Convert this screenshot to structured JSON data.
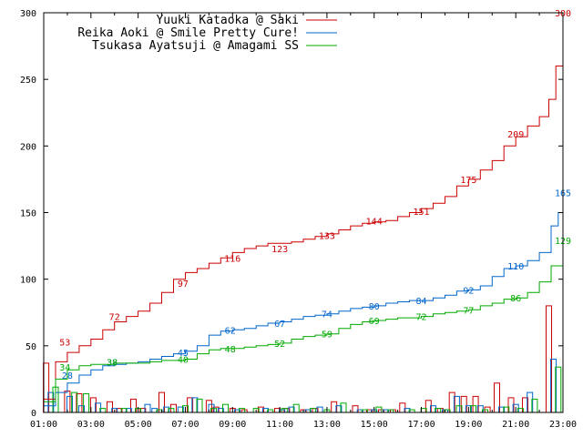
{
  "chart_data": {
    "type": "line",
    "title": "",
    "xlabel": "",
    "ylabel": "",
    "xlim": [
      "01:00",
      "23:00"
    ],
    "ylim": [
      0,
      300
    ],
    "grid": false,
    "legend_position": "top-right",
    "x_tick_labels": [
      "01:00",
      "03:00",
      "05:00",
      "07:00",
      "09:00",
      "11:00",
      "13:00",
      "15:00",
      "17:00",
      "19:00",
      "21:00",
      "23:00"
    ],
    "y_tick_labels": [
      "0",
      "50",
      "100",
      "150",
      "200",
      "250",
      "300"
    ],
    "series": [
      {
        "name": "Yuuki Kataoka @ Saki",
        "color": "#cc0000",
        "points": [
          [
            1.0,
            10
          ],
          [
            1.5,
            38
          ],
          [
            2.0,
            45
          ],
          [
            2.5,
            50
          ],
          [
            3.0,
            55
          ],
          [
            3.5,
            62
          ],
          [
            4.0,
            68
          ],
          [
            4.5,
            72
          ],
          [
            5.0,
            76
          ],
          [
            5.5,
            82
          ],
          [
            6.0,
            90
          ],
          [
            6.5,
            100
          ],
          [
            7.0,
            105
          ],
          [
            7.5,
            108
          ],
          [
            8.0,
            112
          ],
          [
            8.5,
            116
          ],
          [
            9.0,
            120
          ],
          [
            9.5,
            123
          ],
          [
            10.0,
            125
          ],
          [
            10.5,
            127
          ],
          [
            11.0,
            127
          ],
          [
            11.5,
            128
          ],
          [
            12.0,
            130
          ],
          [
            12.5,
            132
          ],
          [
            13.0,
            134
          ],
          [
            13.5,
            137
          ],
          [
            14.0,
            140
          ],
          [
            14.5,
            142
          ],
          [
            15.0,
            143
          ],
          [
            15.5,
            144
          ],
          [
            16.0,
            147
          ],
          [
            16.5,
            150
          ],
          [
            17.0,
            153
          ],
          [
            17.5,
            157
          ],
          [
            18.0,
            162
          ],
          [
            18.5,
            170
          ],
          [
            19.0,
            175
          ],
          [
            19.5,
            182
          ],
          [
            20.0,
            189
          ],
          [
            20.5,
            200
          ],
          [
            21.0,
            207
          ],
          [
            21.5,
            215
          ],
          [
            22.0,
            222
          ],
          [
            22.4,
            235
          ],
          [
            22.7,
            260
          ],
          [
            23.0,
            300
          ]
        ],
        "labels": [
          [
            1.9,
            53
          ],
          [
            4.0,
            72
          ],
          [
            6.9,
            97
          ],
          [
            9.0,
            116
          ],
          [
            11.0,
            123
          ],
          [
            13.0,
            133
          ],
          [
            15.0,
            144
          ],
          [
            17.0,
            151
          ],
          [
            19.0,
            175
          ],
          [
            21.0,
            209
          ],
          [
            23.0,
            300
          ]
        ]
      },
      {
        "name": "Reika Aoki @ Smile Pretty Cure!",
        "color": "#0066cc",
        "points": [
          [
            1.0,
            5
          ],
          [
            1.5,
            15
          ],
          [
            2.0,
            22
          ],
          [
            2.5,
            28
          ],
          [
            3.0,
            32
          ],
          [
            3.5,
            35
          ],
          [
            4.0,
            36
          ],
          [
            4.5,
            37
          ],
          [
            5.0,
            38
          ],
          [
            5.5,
            40
          ],
          [
            6.0,
            42
          ],
          [
            6.5,
            44
          ],
          [
            7.0,
            46
          ],
          [
            7.5,
            50
          ],
          [
            8.0,
            58
          ],
          [
            8.5,
            61
          ],
          [
            9.0,
            62
          ],
          [
            9.5,
            63
          ],
          [
            10.0,
            65
          ],
          [
            10.5,
            67
          ],
          [
            11.0,
            68
          ],
          [
            11.5,
            70
          ],
          [
            12.0,
            72
          ],
          [
            12.5,
            73
          ],
          [
            13.0,
            74
          ],
          [
            13.5,
            76
          ],
          [
            14.0,
            78
          ],
          [
            14.5,
            79
          ],
          [
            15.0,
            80
          ],
          [
            15.5,
            82
          ],
          [
            16.0,
            83
          ],
          [
            16.5,
            84
          ],
          [
            17.0,
            84
          ],
          [
            17.5,
            86
          ],
          [
            18.0,
            88
          ],
          [
            18.5,
            91
          ],
          [
            19.0,
            92
          ],
          [
            19.5,
            95
          ],
          [
            20.0,
            102
          ],
          [
            20.5,
            108
          ],
          [
            21.0,
            110
          ],
          [
            21.5,
            114
          ],
          [
            22.0,
            120
          ],
          [
            22.5,
            140
          ],
          [
            22.8,
            150
          ],
          [
            23.0,
            165
          ]
        ],
        "labels": [
          [
            2.0,
            28
          ],
          [
            3.9,
            38
          ],
          [
            6.9,
            45
          ],
          [
            8.9,
            62
          ],
          [
            11.0,
            67
          ],
          [
            13.0,
            74
          ],
          [
            15.0,
            80
          ],
          [
            17.0,
            84
          ],
          [
            19.0,
            92
          ],
          [
            21.0,
            110
          ],
          [
            23.0,
            165
          ]
        ]
      },
      {
        "name": "Tsukasa Ayatsuji @ Amagami SS",
        "color": "#00aa00",
        "points": [
          [
            1.0,
            8
          ],
          [
            1.5,
            25
          ],
          [
            2.0,
            32
          ],
          [
            2.5,
            35
          ],
          [
            3.0,
            36
          ],
          [
            3.5,
            36
          ],
          [
            4.0,
            37
          ],
          [
            4.5,
            37
          ],
          [
            5.0,
            37
          ],
          [
            5.5,
            38
          ],
          [
            6.0,
            39
          ],
          [
            6.5,
            39
          ],
          [
            7.0,
            40
          ],
          [
            7.5,
            44
          ],
          [
            8.0,
            47
          ],
          [
            8.5,
            48
          ],
          [
            9.0,
            48
          ],
          [
            9.5,
            49
          ],
          [
            10.0,
            50
          ],
          [
            10.5,
            51
          ],
          [
            11.0,
            52
          ],
          [
            11.5,
            55
          ],
          [
            12.0,
            57
          ],
          [
            12.5,
            58
          ],
          [
            13.0,
            59
          ],
          [
            13.5,
            63
          ],
          [
            14.0,
            66
          ],
          [
            14.5,
            68
          ],
          [
            15.0,
            69
          ],
          [
            15.5,
            70
          ],
          [
            16.0,
            71
          ],
          [
            16.5,
            71
          ],
          [
            17.0,
            72
          ],
          [
            17.5,
            74
          ],
          [
            18.0,
            75
          ],
          [
            18.5,
            76
          ],
          [
            19.0,
            77
          ],
          [
            19.5,
            80
          ],
          [
            20.0,
            82
          ],
          [
            20.5,
            85
          ],
          [
            21.0,
            86
          ],
          [
            21.5,
            90
          ],
          [
            22.0,
            98
          ],
          [
            22.5,
            110
          ],
          [
            23.0,
            129
          ]
        ],
        "labels": [
          [
            1.9,
            34
          ],
          [
            3.9,
            38
          ],
          [
            6.9,
            40
          ],
          [
            8.9,
            48
          ],
          [
            11.0,
            52
          ],
          [
            13.0,
            59
          ],
          [
            15.0,
            69
          ],
          [
            17.0,
            72
          ],
          [
            19.0,
            77
          ],
          [
            21.0,
            86
          ],
          [
            23.0,
            129
          ]
        ]
      }
    ],
    "bar_series": [
      {
        "name": "Yuuki Kataoka @ Saki",
        "color": "#cc0000",
        "bars": [
          [
            1.1,
            37
          ],
          [
            2.0,
            16
          ],
          [
            2.5,
            14
          ],
          [
            3.1,
            11
          ],
          [
            3.8,
            8
          ],
          [
            4.2,
            3
          ],
          [
            4.8,
            10
          ],
          [
            5.2,
            3
          ],
          [
            6.0,
            15
          ],
          [
            6.5,
            6
          ],
          [
            7.2,
            11
          ],
          [
            8.0,
            9
          ],
          [
            8.3,
            4
          ],
          [
            9.0,
            3
          ],
          [
            9.5,
            2
          ],
          [
            10.2,
            4
          ],
          [
            10.9,
            3
          ],
          [
            11.3,
            3
          ],
          [
            12.0,
            2
          ],
          [
            12.5,
            3
          ],
          [
            13.3,
            8
          ],
          [
            14.2,
            5
          ],
          [
            14.8,
            2
          ],
          [
            15.3,
            2
          ],
          [
            15.8,
            2
          ],
          [
            16.2,
            7
          ],
          [
            17.3,
            9
          ],
          [
            17.8,
            3
          ],
          [
            18.3,
            15
          ],
          [
            18.8,
            12
          ],
          [
            19.3,
            12
          ],
          [
            19.8,
            4
          ],
          [
            20.2,
            22
          ],
          [
            20.8,
            11
          ],
          [
            21.4,
            11
          ],
          [
            22.4,
            80
          ]
        ]
      },
      {
        "name": "Reika Aoki @ Smile Pretty Cure!",
        "color": "#0066cc",
        "bars": [
          [
            1.3,
            15
          ],
          [
            2.1,
            12
          ],
          [
            2.6,
            5
          ],
          [
            3.3,
            7
          ],
          [
            4.0,
            3
          ],
          [
            4.6,
            3
          ],
          [
            5.4,
            6
          ],
          [
            5.7,
            3
          ],
          [
            6.2,
            4
          ],
          [
            6.8,
            4
          ],
          [
            7.4,
            11
          ],
          [
            8.1,
            6
          ],
          [
            8.5,
            3
          ],
          [
            9.2,
            2
          ],
          [
            10.4,
            3
          ],
          [
            11.1,
            2
          ],
          [
            11.5,
            4
          ],
          [
            12.2,
            2
          ],
          [
            12.7,
            4
          ],
          [
            13.5,
            5
          ],
          [
            14.4,
            2
          ],
          [
            15.0,
            2
          ],
          [
            15.5,
            2
          ],
          [
            16.4,
            3
          ],
          [
            17.5,
            5
          ],
          [
            18.0,
            2
          ],
          [
            18.5,
            12
          ],
          [
            19.0,
            5
          ],
          [
            19.5,
            5
          ],
          [
            20.4,
            4
          ],
          [
            21.0,
            6
          ],
          [
            21.6,
            15
          ],
          [
            22.6,
            40
          ]
        ]
      },
      {
        "name": "Tsukasa Ayatsuji @ Amagami SS",
        "color": "#00aa00",
        "bars": [
          [
            1.5,
            19
          ],
          [
            2.3,
            15
          ],
          [
            2.8,
            14
          ],
          [
            3.5,
            3
          ],
          [
            4.4,
            3
          ],
          [
            5.0,
            3
          ],
          [
            5.9,
            2
          ],
          [
            6.4,
            3
          ],
          [
            7.0,
            5
          ],
          [
            7.6,
            10
          ],
          [
            8.2,
            3
          ],
          [
            8.7,
            6
          ],
          [
            9.4,
            3
          ],
          [
            10.0,
            3
          ],
          [
            10.6,
            2
          ],
          [
            11.2,
            3
          ],
          [
            11.7,
            6
          ],
          [
            12.4,
            3
          ],
          [
            13.0,
            2
          ],
          [
            13.7,
            7
          ],
          [
            14.6,
            2
          ],
          [
            15.2,
            4
          ],
          [
            15.7,
            2
          ],
          [
            16.6,
            2
          ],
          [
            17.1,
            3
          ],
          [
            17.7,
            3
          ],
          [
            18.1,
            2
          ],
          [
            18.6,
            5
          ],
          [
            19.2,
            5
          ],
          [
            19.7,
            2
          ],
          [
            20.6,
            4
          ],
          [
            21.2,
            3
          ],
          [
            21.8,
            10
          ],
          [
            22.8,
            34
          ]
        ]
      }
    ]
  }
}
